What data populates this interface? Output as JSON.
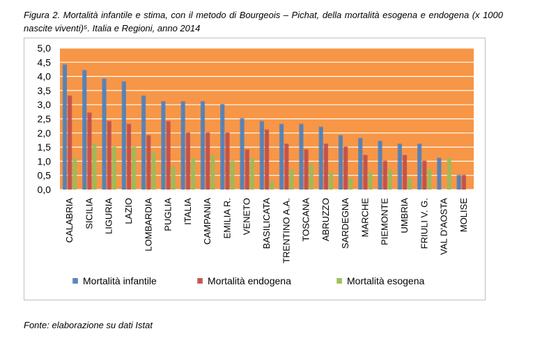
{
  "caption": "Figura 2. Mortalità infantile e stima, con il metodo di Bourgeois – Pichat, della mortalità esogena e endogena (x 1000 nascite viventi)⁵. Italia e Regioni, anno 2014",
  "source": "Fonte: elaborazione su dati Istat",
  "chart_data": {
    "type": "bar",
    "categories": [
      "CALABRIA",
      "SICILIA",
      "LIGURIA",
      "LAZIO",
      "LOMBARDIA",
      "PUGLIA",
      "ITALIA",
      "CAMPANIA",
      "EMILIA R.",
      "VENETO",
      "BASILICATA",
      "TRENTINO A.A.",
      "TOSCANA",
      "ABRUZZO",
      "SARDEGNA",
      "MARCHE",
      "PIEMONTE",
      "UMBRIA",
      "FRIULI V. G.",
      "VAL D'AOSTA",
      "MOLISE"
    ],
    "series": [
      {
        "name": "Mortalità infantile",
        "color": "#4f81bd",
        "values": [
          4.4,
          4.2,
          3.9,
          3.8,
          3.3,
          3.1,
          3.1,
          3.1,
          3.0,
          2.5,
          2.4,
          2.3,
          2.3,
          2.2,
          1.9,
          1.8,
          1.7,
          1.6,
          1.6,
          1.1,
          0.5
        ]
      },
      {
        "name": "Mortalità endogena",
        "color": "#c0504d",
        "values": [
          3.3,
          2.7,
          2.4,
          2.3,
          1.9,
          2.4,
          2.0,
          2.0,
          2.0,
          1.4,
          2.1,
          1.6,
          1.4,
          1.6,
          1.5,
          1.2,
          1.0,
          1.2,
          1.0,
          0.0,
          0.5
        ]
      },
      {
        "name": "Mortalità esogena",
        "color": "#9bbb59",
        "values": [
          1.1,
          1.6,
          1.5,
          1.5,
          1.3,
          0.8,
          1.1,
          1.2,
          1.0,
          1.1,
          0.3,
          0.7,
          0.9,
          0.6,
          0.4,
          0.6,
          0.7,
          0.4,
          0.7,
          1.1,
          0.0
        ]
      }
    ],
    "yticks": [
      "0,0",
      "0,5",
      "1,0",
      "1,5",
      "2,0",
      "2,5",
      "3,0",
      "3,5",
      "4,0",
      "4,5",
      "5,0"
    ],
    "ylim": [
      0,
      5
    ],
    "grid": true,
    "legend_position": "bottom",
    "plot_background": "#f79646"
  }
}
